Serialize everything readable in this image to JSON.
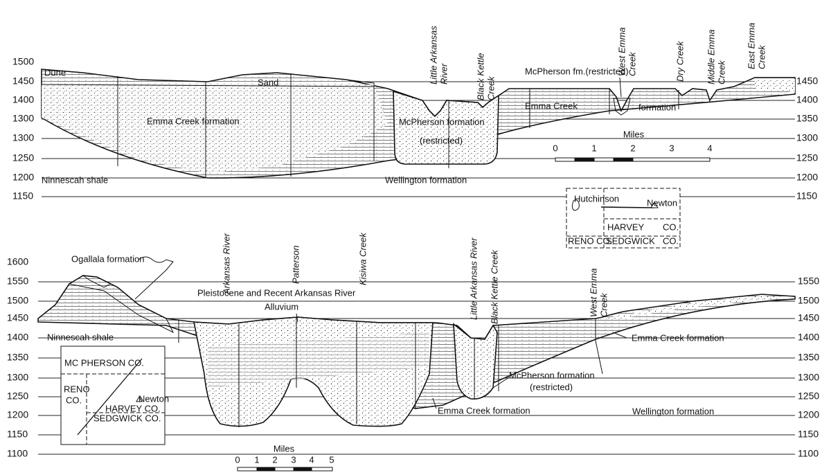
{
  "upper_section": {
    "elevations_left": [
      1500,
      1450,
      1400,
      1300,
      1300,
      1250,
      1200,
      1150
    ],
    "elevations_right": [
      1450,
      1400,
      1350,
      1300,
      1250,
      1200,
      1150
    ],
    "streams": [
      [
        "Little Arkansas",
        "River"
      ],
      [
        "Black Kettle",
        "Creek"
      ],
      [
        "West Emma",
        "Creek"
      ],
      [
        "Dry Creek"
      ],
      [
        "Middle Emma",
        "Creek"
      ],
      [
        "East Emma",
        "Creek"
      ]
    ],
    "labels": {
      "dune": "Dune",
      "sand": "Sand",
      "emma_creek_formation": "Emma Creek formation",
      "mcpherson_formation": "McPherson formation",
      "restricted": "(restricted)",
      "mcpherson_fm": "McPherson fm.(restricted)",
      "emma_creek": "Emma Creek",
      "formation": "formation",
      "ninnescah_shale": "Ninnescah shale",
      "wellington_formation": "Wellington formation"
    },
    "scale": {
      "title": "Miles",
      "ticks": [
        0,
        1,
        2,
        3,
        4
      ]
    },
    "inset": {
      "hutchinson": "Hutchinson",
      "newton": "Newton",
      "harvey": "HARVEY",
      "harvey_co": "CO.",
      "reno": "RENO CO.",
      "sedgwick": "SEDGWICK",
      "sedgwick_co": "CO."
    }
  },
  "lower_section": {
    "elevations_left": [
      1600,
      1550,
      1500,
      1450,
      1400,
      1350,
      1300,
      1250,
      1200,
      1150,
      1100
    ],
    "elevations_right": [
      1550,
      1500,
      1450,
      1400,
      1350,
      1300,
      1250,
      1200,
      1150,
      1100
    ],
    "streams": [
      [
        "Arkansas River"
      ],
      [
        "Patterson"
      ],
      [
        "Kisiwa Creek"
      ],
      [
        "Little Arkansas River"
      ],
      [
        "Black Kettle Creek"
      ],
      [
        "West Emma",
        "Creek"
      ]
    ],
    "labels": {
      "ogallala": "Ogallala formation",
      "pleistocene": "Pleistocene and Recent Arkansas River",
      "alluvium": "Alluvium",
      "ninnescah_shale": "Ninnescah shale",
      "emma_creek_right": "Emma Creek formation",
      "mcpherson_formation": "McPherson formation",
      "restricted": "(restricted)",
      "emma_creek_lower": "Emma Creek formation",
      "wellington_formation": "Wellington formation"
    },
    "scale": {
      "title": "Miles",
      "ticks": [
        0,
        1,
        2,
        3,
        4,
        5
      ]
    },
    "inset": {
      "mcpherson": "MC PHERSON CO.",
      "reno": "RENO",
      "reno_co": "CO.",
      "newton": "Newton",
      "harvey": "HARVEY CO.",
      "sedgwick": "SEDGWICK CO."
    }
  }
}
